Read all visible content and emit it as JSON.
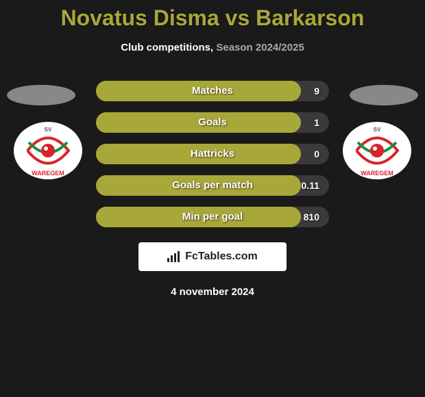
{
  "title": "Novatus Disma vs Barkarson",
  "subtitle_prefix": "Club competitions,",
  "subtitle_suffix": " Season 2024/2025",
  "bar_fill_color": "#a8a83a",
  "bar_bg_color": "#3a3a3a",
  "title_color": "#a8a83a",
  "stats": [
    {
      "label": "Matches",
      "value": "9",
      "fill_pct": 88
    },
    {
      "label": "Goals",
      "value": "1",
      "fill_pct": 88
    },
    {
      "label": "Hattricks",
      "value": "0",
      "fill_pct": 88
    },
    {
      "label": "Goals per match",
      "value": "0.11",
      "fill_pct": 88
    },
    {
      "label": "Min per goal",
      "value": "810",
      "fill_pct": 88
    }
  ],
  "attribution": "FcTables.com",
  "date": "4 november 2024"
}
